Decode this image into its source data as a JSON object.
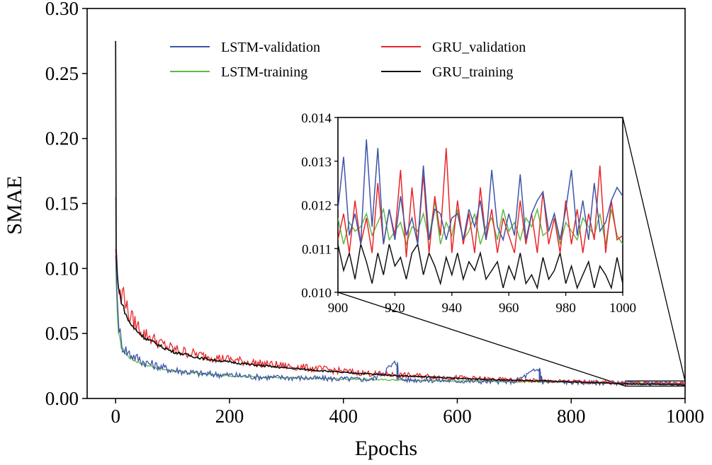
{
  "chart_data": {
    "type": "line",
    "xlabel": "Epochs",
    "ylabel": "SMAE",
    "xlim": [
      -50,
      1000
    ],
    "ylim": [
      0,
      0.3
    ],
    "xticks": [
      0,
      200,
      400,
      600,
      800,
      1000
    ],
    "xtick_labels": [
      "0",
      "200",
      "400",
      "600",
      "800",
      "1000"
    ],
    "yticks": [
      0,
      0.05,
      0.1,
      0.15,
      0.2,
      0.25,
      0.3
    ],
    "ytick_labels": [
      "0.00",
      "0.05",
      "0.10",
      "0.15",
      "0.20",
      "0.25",
      "0.30"
    ],
    "legend": {
      "placement": "top-center",
      "columns": 2
    },
    "series": [
      {
        "name": "LSTM-validation",
        "color": "#3d55a8",
        "x": [
          0,
          2,
          5,
          10,
          20,
          30,
          50,
          80,
          100,
          150,
          200,
          250,
          300,
          350,
          400,
          450,
          495,
          500,
          550,
          600,
          650,
          700,
          745,
          750,
          800,
          850,
          900,
          950,
          1000
        ],
        "y": [
          0.11,
          0.085,
          0.06,
          0.042,
          0.036,
          0.033,
          0.028,
          0.024,
          0.022,
          0.019,
          0.018,
          0.0165,
          0.016,
          0.0155,
          0.015,
          0.0145,
          0.028,
          0.0145,
          0.014,
          0.0135,
          0.013,
          0.013,
          0.023,
          0.0128,
          0.0125,
          0.012,
          0.0118,
          0.0117,
          0.0115
        ]
      },
      {
        "name": "LSTM-training",
        "color": "#5fb944",
        "x": [
          0,
          1,
          3,
          5,
          10,
          20,
          30,
          50,
          80,
          100,
          150,
          200,
          250,
          300,
          400,
          500,
          600,
          700,
          800,
          900,
          1000
        ],
        "y": [
          0.155,
          0.09,
          0.065,
          0.05,
          0.04,
          0.033,
          0.03,
          0.026,
          0.023,
          0.021,
          0.019,
          0.0175,
          0.0165,
          0.016,
          0.015,
          0.0142,
          0.0135,
          0.013,
          0.0125,
          0.0118,
          0.0115
        ]
      },
      {
        "name": "GRU_validation",
        "color": "#e8262a",
        "x": [
          0,
          2,
          5,
          10,
          15,
          20,
          30,
          50,
          80,
          100,
          150,
          200,
          250,
          300,
          350,
          400,
          450,
          500,
          550,
          600,
          650,
          700,
          750,
          800,
          850,
          900,
          950,
          1000
        ],
        "y": [
          0.115,
          0.1,
          0.085,
          0.075,
          0.086,
          0.068,
          0.06,
          0.05,
          0.042,
          0.038,
          0.033,
          0.03,
          0.027,
          0.025,
          0.023,
          0.021,
          0.019,
          0.018,
          0.017,
          0.016,
          0.015,
          0.014,
          0.0135,
          0.013,
          0.0125,
          0.0118,
          0.0117,
          0.0115
        ]
      },
      {
        "name": "GRU_training",
        "color": "#111111",
        "x": [
          0,
          1,
          3,
          5,
          10,
          20,
          30,
          50,
          80,
          100,
          150,
          200,
          250,
          300,
          400,
          500,
          600,
          700,
          800,
          900,
          1000
        ],
        "y": [
          0.275,
          0.115,
          0.095,
          0.085,
          0.075,
          0.062,
          0.055,
          0.047,
          0.04,
          0.036,
          0.031,
          0.028,
          0.0255,
          0.0235,
          0.02,
          0.0175,
          0.0155,
          0.014,
          0.0128,
          0.0112,
          0.0105
        ]
      }
    ],
    "inset": {
      "xlim": [
        900,
        1000
      ],
      "ylim": [
        0.01,
        0.014
      ],
      "xticks": [
        900,
        920,
        940,
        960,
        980,
        1000
      ],
      "xtick_labels": [
        "900",
        "920",
        "940",
        "960",
        "980",
        "1000"
      ],
      "yticks": [
        0.01,
        0.011,
        0.012,
        0.013,
        0.014
      ],
      "ytick_labels": [
        "0.010",
        "0.011",
        "0.012",
        "0.013",
        "0.014"
      ],
      "zoom_region": {
        "x": [
          895,
          1000
        ],
        "y": [
          0.0095,
          0.0135
        ]
      },
      "series": [
        {
          "name": "LSTM-validation",
          "x": [
            900,
            902,
            904,
            906,
            908,
            910,
            912,
            914,
            916,
            918,
            920,
            922,
            924,
            926,
            928,
            930,
            932,
            934,
            936,
            938,
            940,
            942,
            944,
            946,
            948,
            950,
            952,
            954,
            956,
            958,
            960,
            962,
            964,
            966,
            968,
            970,
            972,
            974,
            976,
            978,
            980,
            982,
            984,
            986,
            988,
            990,
            992,
            994,
            996,
            998,
            1000
          ],
          "y": [
            0.0119,
            0.0131,
            0.0113,
            0.0118,
            0.0111,
            0.0135,
            0.0115,
            0.0133,
            0.0111,
            0.0119,
            0.0112,
            0.0122,
            0.0113,
            0.0117,
            0.0111,
            0.0129,
            0.0112,
            0.0119,
            0.0118,
            0.0112,
            0.0117,
            0.0118,
            0.0112,
            0.0119,
            0.0115,
            0.0121,
            0.0112,
            0.0128,
            0.0115,
            0.0112,
            0.0118,
            0.0113,
            0.0127,
            0.0112,
            0.0118,
            0.0121,
            0.0123,
            0.0114,
            0.0118,
            0.0112,
            0.0119,
            0.0128,
            0.0113,
            0.0121,
            0.0112,
            0.0125,
            0.0114,
            0.0116,
            0.0121,
            0.0124,
            0.0122
          ]
        },
        {
          "name": "LSTM-training",
          "x": [
            900,
            902,
            904,
            906,
            908,
            910,
            912,
            914,
            916,
            918,
            920,
            922,
            924,
            926,
            928,
            930,
            932,
            934,
            936,
            938,
            940,
            942,
            944,
            946,
            948,
            950,
            952,
            954,
            956,
            958,
            960,
            962,
            964,
            966,
            968,
            970,
            972,
            974,
            976,
            978,
            980,
            982,
            984,
            986,
            988,
            990,
            992,
            994,
            996,
            998,
            1000
          ],
          "y": [
            0.0117,
            0.0111,
            0.0116,
            0.0114,
            0.0115,
            0.0118,
            0.0113,
            0.0116,
            0.0119,
            0.0112,
            0.0114,
            0.0116,
            0.0111,
            0.0115,
            0.0114,
            0.0118,
            0.0112,
            0.0121,
            0.0111,
            0.0116,
            0.0113,
            0.0119,
            0.0112,
            0.0114,
            0.0118,
            0.0111,
            0.0115,
            0.0117,
            0.0112,
            0.0119,
            0.0114,
            0.0116,
            0.0112,
            0.0117,
            0.0115,
            0.0119,
            0.0113,
            0.0114,
            0.0118,
            0.0111,
            0.0116,
            0.0114,
            0.0112,
            0.0117,
            0.0115,
            0.0113,
            0.0118,
            0.0111,
            0.0119,
            0.0113,
            0.0111
          ]
        },
        {
          "name": "GRU_validation",
          "x": [
            900,
            902,
            904,
            906,
            908,
            910,
            912,
            914,
            916,
            918,
            920,
            922,
            924,
            926,
            928,
            930,
            932,
            934,
            936,
            938,
            940,
            942,
            944,
            946,
            948,
            950,
            952,
            954,
            956,
            958,
            960,
            962,
            964,
            966,
            968,
            970,
            972,
            974,
            976,
            978,
            980,
            982,
            984,
            986,
            988,
            990,
            992,
            994,
            996,
            998,
            1000
          ],
          "y": [
            0.0112,
            0.0118,
            0.0109,
            0.0121,
            0.0111,
            0.0117,
            0.0109,
            0.0125,
            0.0111,
            0.0119,
            0.0113,
            0.0128,
            0.0108,
            0.0124,
            0.0111,
            0.0127,
            0.0109,
            0.0122,
            0.0113,
            0.0133,
            0.0109,
            0.0121,
            0.0111,
            0.0118,
            0.0109,
            0.0124,
            0.0112,
            0.0119,
            0.0109,
            0.0117,
            0.0113,
            0.0109,
            0.0121,
            0.0111,
            0.0118,
            0.0109,
            0.0123,
            0.0111,
            0.0117,
            0.0109,
            0.0121,
            0.0111,
            0.0119,
            0.0109,
            0.0118,
            0.0112,
            0.0129,
            0.0109,
            0.0121,
            0.0112,
            0.0113
          ]
        },
        {
          "name": "GRU_training",
          "x": [
            900,
            902,
            904,
            906,
            908,
            910,
            912,
            914,
            916,
            918,
            920,
            922,
            924,
            926,
            928,
            930,
            932,
            934,
            936,
            938,
            940,
            942,
            944,
            946,
            948,
            950,
            952,
            954,
            956,
            958,
            960,
            962,
            964,
            966,
            968,
            970,
            972,
            974,
            976,
            978,
            980,
            982,
            984,
            986,
            988,
            990,
            992,
            994,
            996,
            998,
            1000
          ],
          "y": [
            0.0111,
            0.0105,
            0.0109,
            0.0103,
            0.0111,
            0.0107,
            0.0102,
            0.0109,
            0.0104,
            0.0111,
            0.0106,
            0.0108,
            0.0103,
            0.0109,
            0.0111,
            0.0104,
            0.0109,
            0.0106,
            0.0102,
            0.0108,
            0.0104,
            0.0109,
            0.0103,
            0.0107,
            0.0105,
            0.0109,
            0.0103,
            0.0105,
            0.0107,
            0.0101,
            0.0106,
            0.0103,
            0.0109,
            0.0102,
            0.0104,
            0.0101,
            0.0108,
            0.0103,
            0.0105,
            0.0109,
            0.0102,
            0.0106,
            0.0101,
            0.0104,
            0.0107,
            0.0101,
            0.0106,
            0.0104,
            0.0101,
            0.0108,
            0.0102
          ]
        }
      ]
    }
  }
}
